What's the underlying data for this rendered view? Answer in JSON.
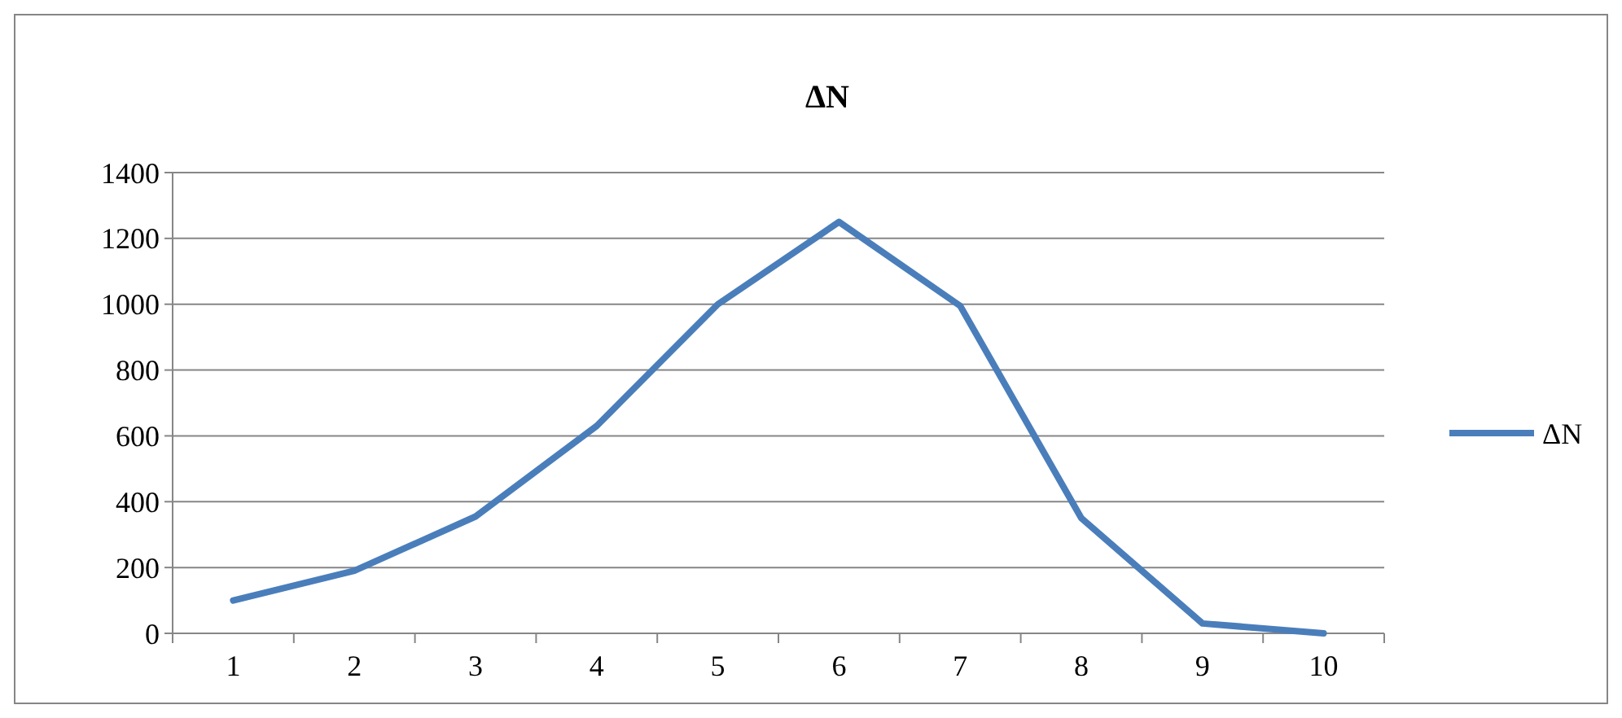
{
  "chart_data": {
    "type": "line",
    "title": "ΔN",
    "categories": [
      "1",
      "2",
      "3",
      "4",
      "5",
      "6",
      "7",
      "8",
      "9",
      "10"
    ],
    "series": [
      {
        "name": "ΔN",
        "color": "#4a7ebb",
        "values": [
          100,
          190,
          355,
          630,
          1000,
          1250,
          995,
          350,
          30,
          0
        ]
      }
    ],
    "ylim": [
      0,
      1400
    ],
    "yticks": [
      0,
      200,
      400,
      600,
      800,
      1000,
      1200,
      1400
    ],
    "grid": "y",
    "legend": "right",
    "marker": "none",
    "line_style": "solid"
  }
}
